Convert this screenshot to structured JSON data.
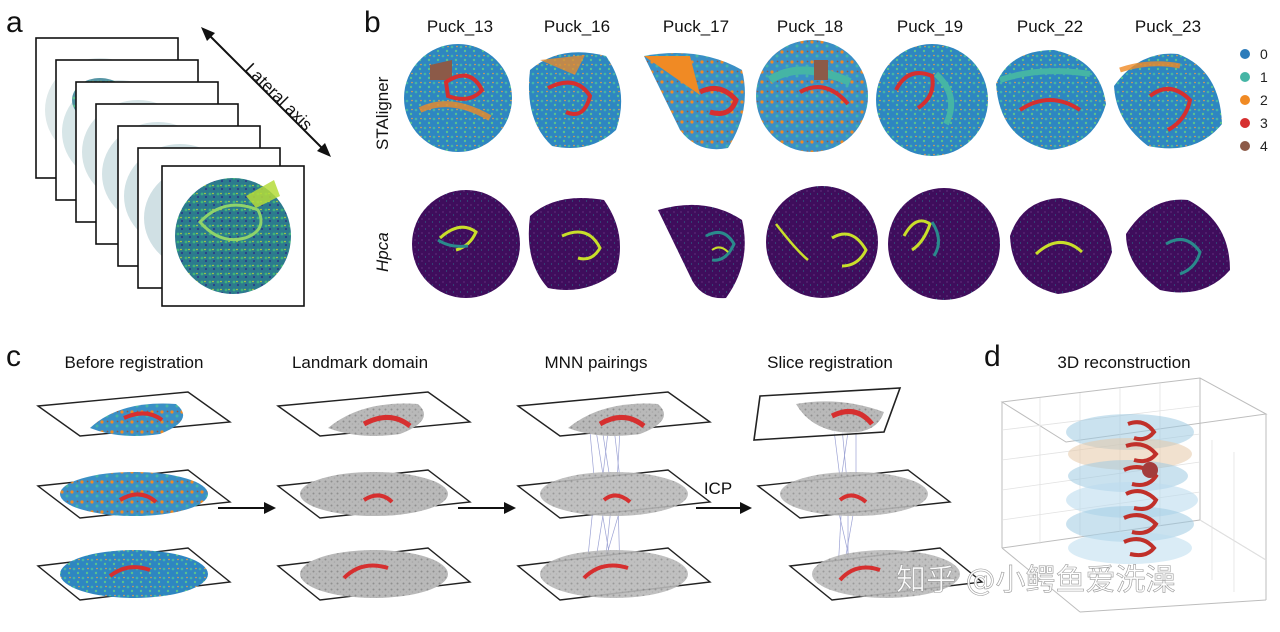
{
  "panels": {
    "a": "a",
    "b": "b",
    "c": "c",
    "d": "d"
  },
  "panel_a": {
    "axis_label": "Lateral axis",
    "slice_count": 7
  },
  "panel_b": {
    "pucks": [
      "Puck_13",
      "Puck_16",
      "Puck_17",
      "Puck_18",
      "Puck_19",
      "Puck_22",
      "Puck_23"
    ],
    "row_labels": [
      "STAligner",
      "Hpca"
    ],
    "legend": [
      {
        "label": "0",
        "color": "#2b7bba"
      },
      {
        "label": "1",
        "color": "#45b5a5"
      },
      {
        "label": "2",
        "color": "#f08a24"
      },
      {
        "label": "3",
        "color": "#d62f2f"
      },
      {
        "label": "4",
        "color": "#8c5a48"
      }
    ],
    "hpca_colors": {
      "background": "#3f0d5c",
      "mid": "#2a8a8c",
      "high": "#c9df2a"
    }
  },
  "panel_c": {
    "steps": [
      "Before registration",
      "Landmark domain",
      "MNN pairings",
      "Slice registration"
    ],
    "arrow_label": "ICP"
  },
  "panel_d": {
    "title": "3D reconstruction"
  },
  "watermark": "知乎 @小鳄鱼爱洗澡"
}
